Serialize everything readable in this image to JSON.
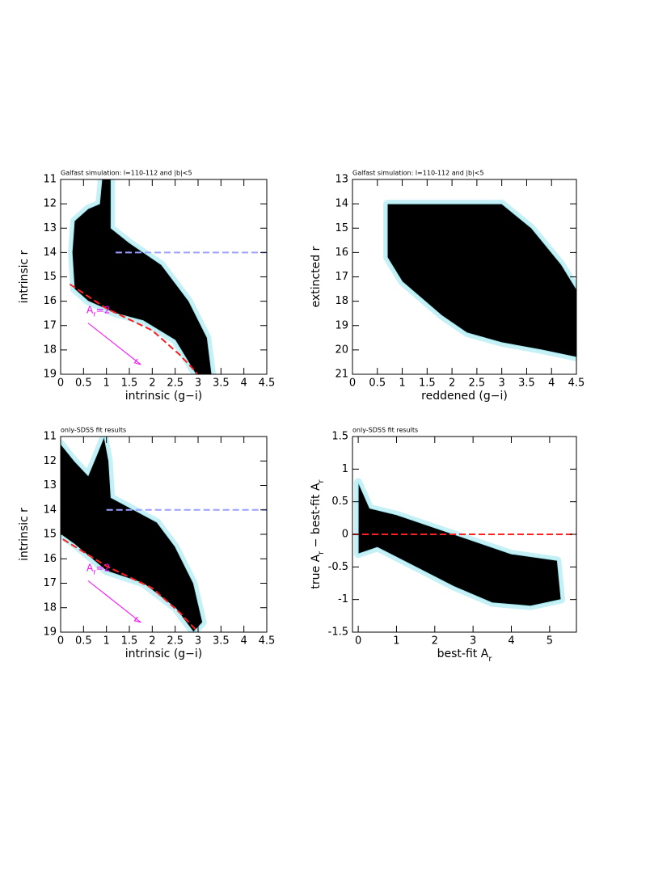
{
  "chart_data": [
    {
      "type": "scatter",
      "title": "Galfast simulation: l=110-112 and |b|<5",
      "xlabel": "intrinsic (g−i)",
      "ylabel": "intrinsic r",
      "xlim": [
        0,
        4.5
      ],
      "ylim": [
        11,
        19
      ],
      "y_inverted": true,
      "xticks": [
        0,
        0.5,
        1,
        1.5,
        2,
        2.5,
        3,
        3.5,
        4,
        4.5
      ],
      "yticks": [
        11,
        12,
        13,
        14,
        15,
        16,
        17,
        18,
        19
      ],
      "region": {
        "color": "#000000",
        "contour_color": "#9ee8f0",
        "x": [
          0.3,
          0.6,
          0.85,
          0.9,
          1.1,
          1.1,
          1.5,
          2.2,
          2.8,
          3.2,
          3.3,
          2.95,
          2.5,
          1.8,
          1.2,
          0.6,
          0.3,
          0.25
        ],
        "y": [
          12.7,
          12.2,
          12,
          11,
          11,
          13,
          13.6,
          14.5,
          16,
          17.5,
          19,
          19,
          17.6,
          16.8,
          16.5,
          16,
          15.5,
          14
        ]
      },
      "lines": [
        {
          "color": "#9aa0ff",
          "x": [
            1.2,
            4.5
          ],
          "y": [
            14,
            14
          ]
        },
        {
          "color": "#ff2020",
          "x": [
            0.2,
            1.0,
            2.0,
            2.6,
            3.0
          ],
          "y": [
            15.3,
            16.3,
            17.2,
            18.2,
            19
          ]
        }
      ],
      "annotation": {
        "text": [
          {
            "text": "A"
          },
          {
            "text": "r",
            "sub": true
          },
          {
            "text": "=2"
          }
        ],
        "color": "#ff00ff",
        "x": [
          0.6,
          1.75
        ],
        "y": [
          16.9,
          18.6
        ]
      }
    },
    {
      "type": "scatter",
      "title": "Galfast simulation: l=110-112 and |b|<5",
      "xlabel": "reddened (g−i)",
      "ylabel": "extincted r",
      "xlim": [
        0,
        4.5
      ],
      "ylim": [
        13,
        21
      ],
      "y_inverted": true,
      "xticks": [
        0,
        0.5,
        1,
        1.5,
        2,
        2.5,
        3,
        3.5,
        4,
        4.5
      ],
      "yticks": [
        13,
        14,
        15,
        16,
        17,
        18,
        19,
        20,
        21
      ],
      "region": {
        "color": "#000000",
        "contour_color": "#9ee8f0",
        "x": [
          0.7,
          3.0,
          3.6,
          4.2,
          4.5,
          4.5,
          3.8,
          3.0,
          2.3,
          1.8,
          1.0,
          0.7
        ],
        "y": [
          14,
          14,
          15,
          16.5,
          17.5,
          20.3,
          20,
          19.7,
          19.3,
          18.6,
          17.2,
          16.2
        ]
      }
    },
    {
      "type": "scatter",
      "title": "only-SDSS fit results",
      "xlabel": "intrinsic (g−i)",
      "ylabel": "intrinsic r",
      "xlim": [
        0,
        4.5
      ],
      "ylim": [
        11,
        19
      ],
      "y_inverted": true,
      "xticks": [
        0,
        0.5,
        1,
        1.5,
        2,
        2.5,
        3,
        3.5,
        4,
        4.5
      ],
      "yticks": [
        11,
        12,
        13,
        14,
        15,
        16,
        17,
        18,
        19
      ],
      "region": {
        "color": "#000000",
        "contour_color": "#9ee8f0",
        "x": [
          0,
          0.3,
          0.6,
          0.8,
          0.95,
          1.05,
          1.1,
          1.8,
          2.1,
          2.5,
          2.9,
          3.1,
          2.9,
          2.5,
          1.8,
          1.0,
          0.3,
          0
        ],
        "y": [
          11.3,
          12,
          12.6,
          11.7,
          11,
          12,
          13.5,
          14.2,
          14.5,
          15.5,
          17,
          18.6,
          19,
          18,
          17,
          16.5,
          15.4,
          15
        ]
      },
      "lines": [
        {
          "color": "#9aa0ff",
          "x": [
            1.0,
            4.5
          ],
          "y": [
            14,
            14
          ]
        },
        {
          "color": "#ff2020",
          "x": [
            0.05,
            1.0,
            2.0,
            2.6,
            3.0
          ],
          "y": [
            15.2,
            16.3,
            17.2,
            18.2,
            19
          ]
        }
      ],
      "annotation": {
        "text": [
          {
            "text": "A"
          },
          {
            "text": "r",
            "sub": true
          },
          {
            "text": "=2"
          }
        ],
        "color": "#ff00ff",
        "x": [
          0.6,
          1.75
        ],
        "y": [
          16.9,
          18.6
        ]
      }
    },
    {
      "type": "scatter",
      "title": "only-SDSS fit results",
      "xlabel": [
        {
          "text": "best-fit A"
        },
        {
          "text": "r",
          "sub": true
        }
      ],
      "ylabel": [
        {
          "text": "true A"
        },
        {
          "text": "r",
          "sub": true
        },
        {
          "text": " − best-fit A"
        },
        {
          "text": "r",
          "sub": true
        }
      ],
      "xlim": [
        -0.15,
        5.7
      ],
      "ylim": [
        -1.5,
        1.5
      ],
      "xticks": [
        0,
        1,
        2,
        3,
        4,
        5
      ],
      "yticks": [
        -1.5,
        -1,
        -0.5,
        0,
        0.5,
        1,
        1.5
      ],
      "region": {
        "color": "#000000",
        "contour_color": "#9ee8f0",
        "x": [
          0,
          0.3,
          1,
          2,
          3,
          4,
          5.2,
          5.3,
          4.5,
          3.5,
          2.5,
          1.5,
          0.5,
          0
        ],
        "y": [
          0.8,
          0.4,
          0.3,
          0.1,
          -0.1,
          -0.3,
          -0.4,
          -1.0,
          -1.1,
          -1.05,
          -0.8,
          -0.5,
          -0.2,
          -0.3
        ]
      },
      "lines": [
        {
          "color": "#ff2020",
          "x": [
            -0.15,
            5.7
          ],
          "y": [
            0,
            0
          ]
        }
      ]
    }
  ]
}
